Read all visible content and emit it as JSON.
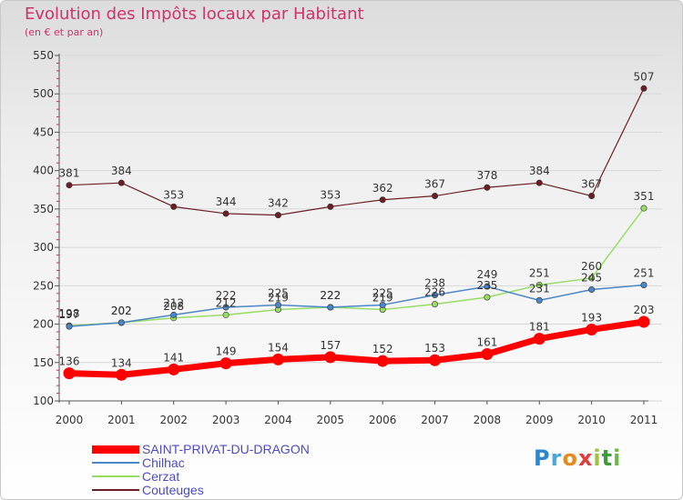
{
  "header": {
    "title": "Evolution des Impôts locaux par Habitant",
    "subtitle": "(en € et par an)"
  },
  "logo_text": "Proxiti",
  "chart_data": {
    "type": "line",
    "title": "Evolution des Impôts locaux par Habitant",
    "subtitle": "(en € et par an)",
    "xlabel": "",
    "ylabel": "",
    "categories": [
      "2000",
      "2001",
      "2002",
      "2003",
      "2004",
      "2005",
      "2006",
      "2007",
      "2008",
      "2009",
      "2010",
      "2011"
    ],
    "ylim": [
      100,
      550
    ],
    "yticks": [
      100,
      150,
      200,
      250,
      300,
      350,
      400,
      450,
      500,
      550
    ],
    "grid": true,
    "legend_position": "bottom-left",
    "series": [
      {
        "name": "SAINT-PRIVAT-DU-DRAGON",
        "color": "#ff0000",
        "values": [
          136,
          134,
          141,
          149,
          154,
          157,
          152,
          153,
          161,
          181,
          193,
          203
        ]
      },
      {
        "name": "Chilhac",
        "color": "#4a86c8",
        "values": [
          197,
          202,
          212,
          222,
          225,
          222,
          225,
          238,
          249,
          231,
          245,
          251
        ]
      },
      {
        "name": "Cerzat",
        "color": "#99dd66",
        "values": [
          198,
          202,
          208,
          212,
          219,
          222,
          219,
          226,
          235,
          251,
          260,
          351
        ]
      },
      {
        "name": "Couteuges",
        "color": "#6b1f24",
        "values": [
          381,
          384,
          353,
          344,
          342,
          353,
          362,
          367,
          378,
          384,
          367,
          507
        ]
      }
    ],
    "data_labels": [
      [
        "136",
        "134",
        "141",
        "149",
        "154",
        "157",
        "152",
        "153",
        "161",
        "181",
        "193",
        "203"
      ],
      [
        "197",
        "202",
        "212",
        "222",
        "225",
        "222",
        "225",
        "238",
        "249",
        "231",
        "245",
        "251"
      ],
      [
        "198",
        "202",
        "208",
        "212",
        "219",
        "222",
        "219",
        "226",
        "235",
        "251",
        "260",
        "351"
      ],
      [
        "381",
        "384",
        "353",
        "344",
        "342",
        "353",
        "362",
        "367",
        "378",
        "384",
        "367",
        "507"
      ]
    ]
  }
}
